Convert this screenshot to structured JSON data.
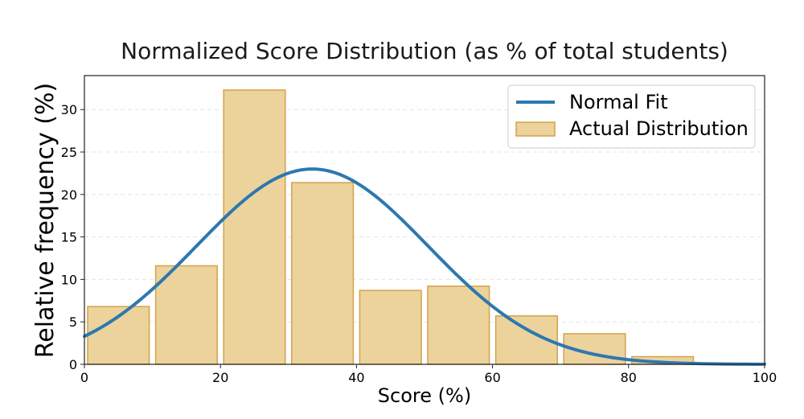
{
  "chart_data": {
    "type": "bar",
    "title": "Normalized Score Distribution (as % of total students)",
    "xlabel": "Score (%)",
    "ylabel": "Relative frequency (%)",
    "xlim": [
      0,
      100
    ],
    "ylim": [
      0,
      34
    ],
    "x_ticks": [
      0,
      20,
      40,
      60,
      80,
      100
    ],
    "y_ticks": [
      0,
      5,
      10,
      15,
      20,
      25,
      30
    ],
    "grid": "y-dashed",
    "legend_position": "top-right",
    "bin_edges": [
      0,
      10,
      20,
      30,
      40,
      50,
      60,
      70,
      80,
      90
    ],
    "series": [
      {
        "name": "Normal Fit",
        "kind": "line",
        "color": "#2c78b0",
        "mean": 33.5,
        "std": 17.0,
        "peak": 23.0
      },
      {
        "name": "Actual Distribution",
        "kind": "bar",
        "color": "#ecd39c",
        "edge_color": "#d4a24a",
        "values": [
          6.8,
          11.6,
          32.3,
          21.4,
          8.7,
          9.2,
          5.7,
          3.6,
          0.9
        ]
      }
    ]
  }
}
